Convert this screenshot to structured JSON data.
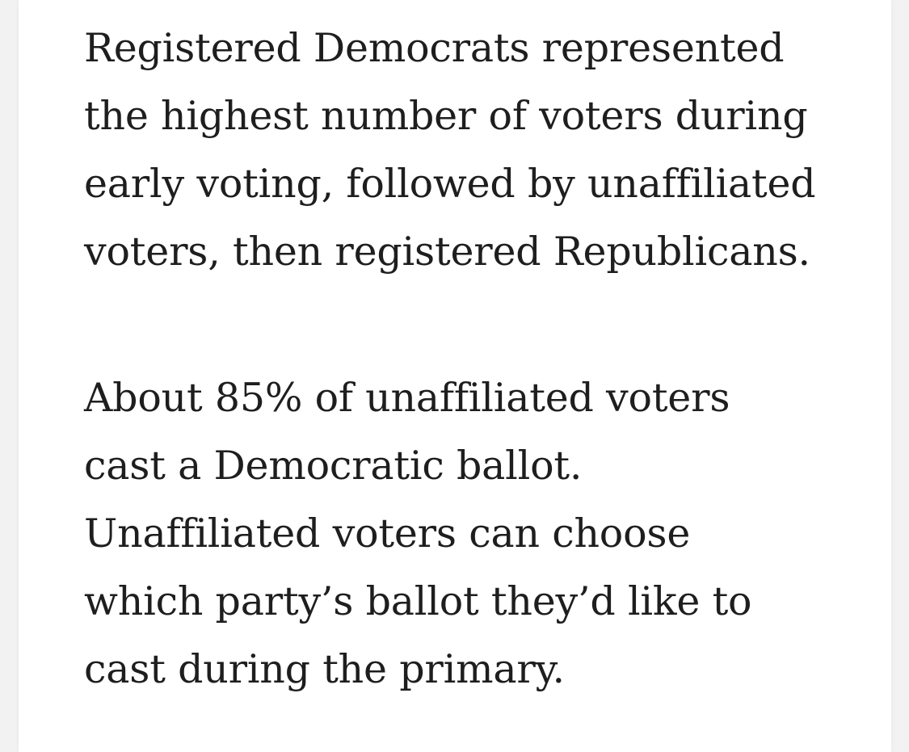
{
  "article": {
    "paragraphs": [
      {
        "lines": [
          "Registered Democrats represented",
          "the highest number of voters during",
          "early voting, followed by unaffiliated",
          "voters, then registered Republicans."
        ]
      },
      {
        "lines": [
          "About 85% of unaffiliated voters",
          "cast a Democratic ballot.",
          "Unaffiliated voters can choose",
          "which party’s ballot they’d like to",
          "cast during the primary."
        ]
      }
    ]
  }
}
